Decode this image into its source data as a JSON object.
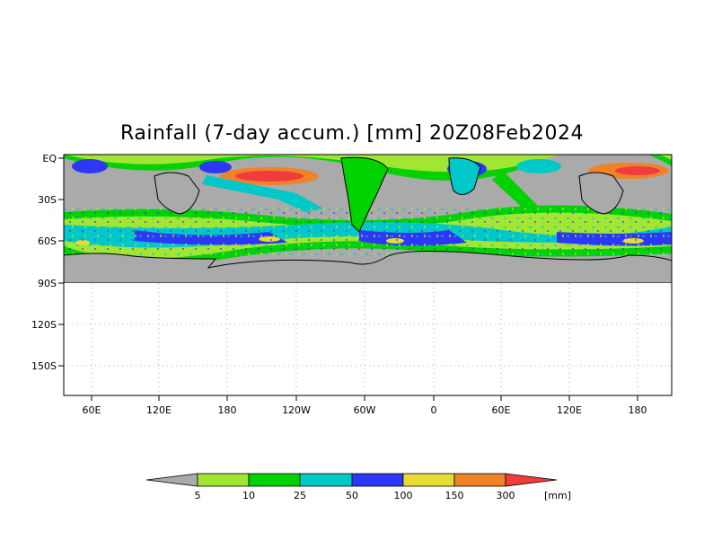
{
  "title": "Rainfall (7-day accum.) [mm] 20Z08Feb2024",
  "map": {
    "lat_ticks": [
      "EQ",
      "30S",
      "60S",
      "90S",
      "120S",
      "150S"
    ],
    "lon_ticks": [
      "60E",
      "120E",
      "180",
      "120W",
      "60W",
      "0",
      "60E",
      "120E",
      "180"
    ],
    "grid": true,
    "ocean_land_nodata_color": "#aaaaaa",
    "coastline_color": "#000000"
  },
  "legend": {
    "levels": [
      "5",
      "10",
      "25",
      "50",
      "100",
      "150",
      "300"
    ],
    "unit": "[mm]",
    "colors": [
      "#aaaaaa",
      "#a0e632",
      "#00d200",
      "#00c8c8",
      "#2c38f5",
      "#e6dc32",
      "#f08228",
      "#f03c3c"
    ]
  }
}
